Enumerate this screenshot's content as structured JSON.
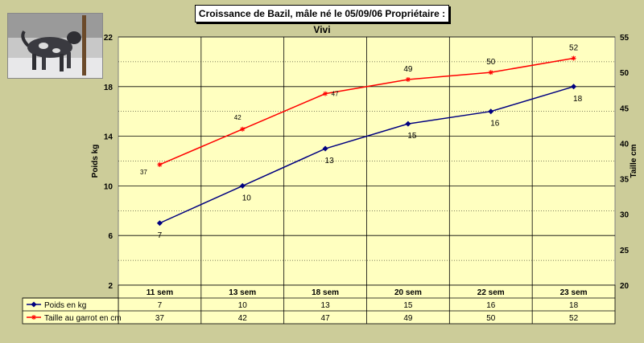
{
  "chart_data": {
    "type": "line",
    "title": "Croissance de Bazil, mâle né le 05/09/06  Propriétaire : Vivi",
    "categories": [
      "11 sem",
      "13 sem",
      "18 sem",
      "20 sem",
      "22 sem",
      "23 sem"
    ],
    "series": [
      {
        "name": "Poids en kg",
        "axis": "left",
        "color": "#000080",
        "marker": "diamond",
        "values": [
          7,
          10,
          13,
          15,
          16,
          18
        ]
      },
      {
        "name": "Taille au garrot en cm",
        "axis": "right",
        "color": "#ff0000",
        "marker": "star",
        "values": [
          37,
          42,
          47,
          49,
          50,
          52
        ]
      }
    ],
    "ylabel": "Poids kg",
    "y2label": "Taille cm",
    "ylim": [
      2,
      22
    ],
    "yticks": [
      2,
      6,
      10,
      14,
      18,
      22
    ],
    "y2lim": [
      20,
      55
    ],
    "y2ticks": [
      20,
      25,
      30,
      35,
      40,
      45,
      50,
      55
    ],
    "grid": true,
    "plot_background": "#ffffc0",
    "legend": "data-table",
    "photo": {
      "description": "photo of the dog in snow"
    }
  }
}
